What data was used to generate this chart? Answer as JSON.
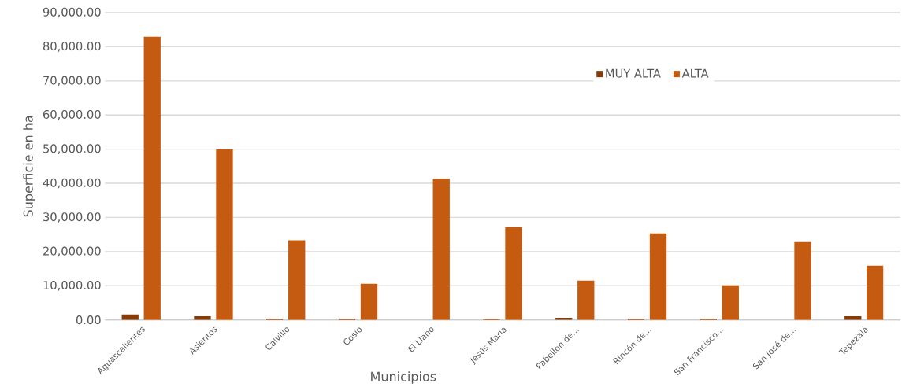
{
  "chart_data": {
    "type": "bar",
    "xlabel": "Municipios",
    "ylabel": "Superficie en ha",
    "categories": [
      "Aguascalientes",
      "Asientos",
      "Calvillo",
      "Cosío",
      "El Llano",
      "Jesús María",
      "Pabellón de...",
      "Rincón de...",
      "San Francisco...",
      "San José de...",
      "Tepezalá"
    ],
    "series": [
      {
        "name": "MUY ALTA",
        "color": "#843c0c",
        "values": [
          1600,
          1100,
          400,
          400,
          0,
          400,
          600,
          400,
          400,
          0,
          1100
        ]
      },
      {
        "name": "ALTA",
        "color": "#c55a11",
        "values": [
          82900,
          50000,
          23300,
          10600,
          41400,
          27200,
          11500,
          25300,
          10100,
          22800,
          15900
        ]
      }
    ],
    "ylim": [
      0,
      90000
    ],
    "yticks": [
      {
        "value": 0,
        "label": "0.00"
      },
      {
        "value": 10000,
        "label": "10,000.00"
      },
      {
        "value": 20000,
        "label": "20,000.00"
      },
      {
        "value": 30000,
        "label": "30,000.00"
      },
      {
        "value": 40000,
        "label": "40,000.00"
      },
      {
        "value": 50000,
        "label": "50,000.00"
      },
      {
        "value": 60000,
        "label": "60,000.00"
      },
      {
        "value": 70000,
        "label": "70,000.00"
      },
      {
        "value": 80000,
        "label": "80,000.00"
      },
      {
        "value": 90000,
        "label": "90,000.00"
      }
    ],
    "grid": "y",
    "legend": "top"
  }
}
